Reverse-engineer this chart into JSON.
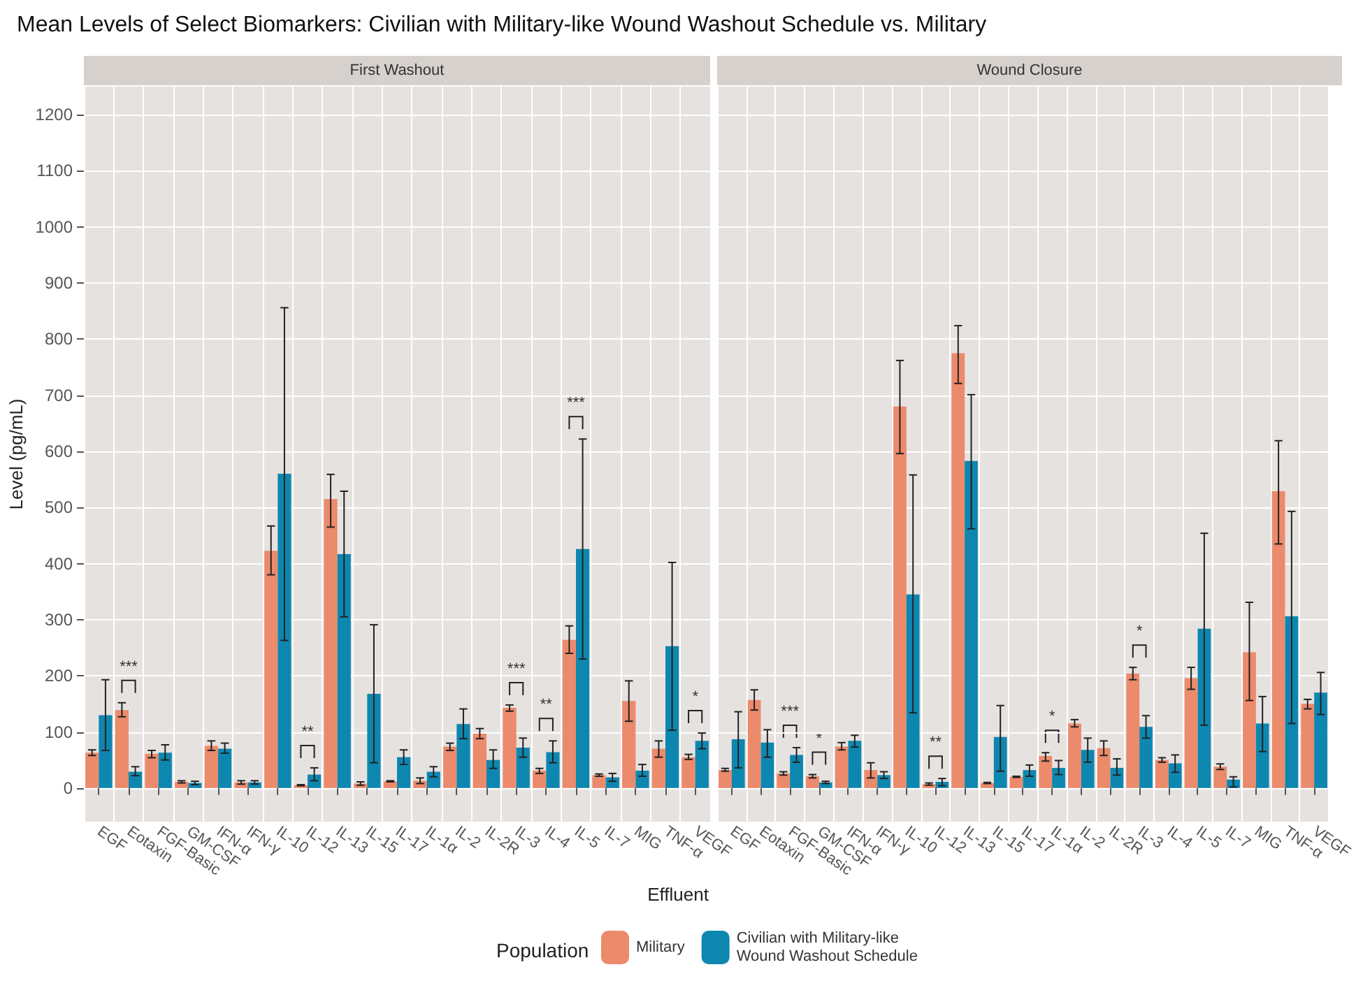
{
  "chart_data": [
    {
      "type": "bar",
      "title": "Mean Levels of Select Biomarkers: Civilian with Military-like Wound Washout Schedule vs. Military",
      "subtitle": "First Washout",
      "xlabel": "Effluent",
      "ylabel": "Level (pg/mL)",
      "legend_title": "Population",
      "legend": "bottom",
      "grid": true,
      "categories": [
        "EGF",
        "Eotaxin",
        "FGF-Basic",
        "GM-CSF",
        "IFN-α",
        "IFN-γ",
        "IL-10",
        "IL-12",
        "IL-13",
        "IL-15",
        "IL-17",
        "IL-1α",
        "IL-2",
        "IL-2R",
        "IL-3",
        "IL-4",
        "IL-5",
        "IL-7",
        "MIG",
        "TNF-α",
        "VEGF"
      ],
      "ylim": [
        -60,
        1250
      ],
      "yticks": [
        0,
        100,
        200,
        300,
        400,
        500,
        600,
        700,
        800,
        900,
        1000,
        1100,
        1200
      ],
      "series": [
        {
          "name": "Military",
          "color": "#ec8a6c",
          "values": [
            63,
            139,
            61,
            11,
            75,
            10,
            423,
            5,
            515,
            8,
            12,
            13,
            74,
            97,
            143,
            31,
            264,
            23,
            155,
            70,
            55
          ],
          "errors": [
            [
              58,
              68
            ],
            [
              127,
              152
            ],
            [
              54,
              67
            ],
            [
              9,
              13
            ],
            [
              67,
              84
            ],
            [
              7,
              13
            ],
            [
              380,
              467
            ],
            [
              4,
              6
            ],
            [
              465,
              559
            ],
            [
              5,
              11
            ],
            [
              11,
              13
            ],
            [
              8,
              18
            ],
            [
              67,
              80
            ],
            [
              88,
              106
            ],
            [
              137,
              148
            ],
            [
              26,
              35
            ],
            [
              240,
              289
            ],
            [
              21,
              25
            ],
            [
              119,
              191
            ],
            [
              55,
              84
            ],
            [
              51,
              60
            ]
          ]
        },
        {
          "name": "Civilian with Military-like Wound Washout Schedule",
          "color": "#0e87b0",
          "values": [
            130,
            29,
            63,
            9,
            70,
            10,
            560,
            24,
            417,
            168,
            55,
            29,
            114,
            50,
            72,
            64,
            426,
            19,
            31,
            253,
            84
          ],
          "errors": [
            [
              67,
              193
            ],
            [
              22,
              38
            ],
            [
              50,
              77
            ],
            [
              6,
              12
            ],
            [
              62,
              80
            ],
            [
              7,
              13
            ],
            [
              263,
              856
            ],
            [
              13,
              36
            ],
            [
              305,
              529
            ],
            [
              45,
              291
            ],
            [
              42,
              68
            ],
            [
              20,
              38
            ],
            [
              88,
              141
            ],
            [
              35,
              68
            ],
            [
              55,
              89
            ],
            [
              45,
              84
            ],
            [
              230,
              622
            ],
            [
              12,
              26
            ],
            [
              21,
              42
            ],
            [
              103,
              402
            ],
            [
              70,
              98
            ]
          ]
        }
      ],
      "annotations": [
        {
          "text": "***",
          "x": "Eotaxin",
          "y": 139
        },
        {
          "text": "**",
          "x": "IL-12",
          "y": 24
        },
        {
          "text": "***",
          "x": "IL-3",
          "y": 143
        },
        {
          "text": "**",
          "x": "IL-4",
          "y": 64
        },
        {
          "text": "***",
          "x": "IL-5",
          "y": 622
        },
        {
          "text": "*",
          "x": "VEGF",
          "y": 84
        }
      ]
    },
    {
      "type": "bar",
      "subtitle": "Wound Closure",
      "grid": true,
      "tick_labels": "x",
      "categories": [
        "EGF",
        "Eotaxin",
        "FGF-Basic",
        "GM-CSF",
        "IFN-α",
        "IFN-γ",
        "IL-10",
        "IL-12",
        "IL-13",
        "IL-15",
        "IL-17",
        "IL-1α",
        "IL-2",
        "IL-2R",
        "IL-3",
        "IL-4",
        "IL-5",
        "IL-7",
        "MIG",
        "TNF-α",
        "VEGF"
      ],
      "ylim": [
        -60,
        1250
      ],
      "yticks": [
        0,
        100,
        200,
        300,
        400,
        500,
        600,
        700,
        800,
        900,
        1000,
        1100,
        1200
      ],
      "series": [
        {
          "color": "#ec8a6c",
          "values": [
            32,
            157,
            26,
            21,
            74,
            32,
            680,
            7,
            775,
            9,
            20,
            57,
            115,
            71,
            204,
            50,
            196,
            38,
            242,
            529,
            150
          ],
          "errors": [
            [
              30,
              35
            ],
            [
              139,
              175
            ],
            [
              23,
              29
            ],
            [
              18,
              24
            ],
            [
              68,
              81
            ],
            [
              18,
              45
            ],
            [
              596,
              762
            ],
            [
              5,
              9
            ],
            [
              721,
              824
            ],
            [
              8,
              10
            ],
            [
              19,
              21
            ],
            [
              48,
              63
            ],
            [
              109,
              122
            ],
            [
              58,
              84
            ],
            [
              193,
              215
            ],
            [
              46,
              54
            ],
            [
              176,
              215
            ],
            [
              33,
              43
            ],
            [
              156,
              331
            ],
            [
              435,
              619
            ],
            [
              141,
              158
            ]
          ]
        },
        {
          "color": "#0e87b0",
          "values": [
            87,
            81,
            59,
            10,
            84,
            23,
            345,
            11,
            583,
            91,
            32,
            36,
            68,
            36,
            109,
            44,
            284,
            15,
            115,
            306,
            170
          ],
          "errors": [
            [
              36,
              136
            ],
            [
              55,
              104
            ],
            [
              46,
              72
            ],
            [
              8,
              12
            ],
            [
              73,
              94
            ],
            [
              17,
              29
            ],
            [
              134,
              558
            ],
            [
              4,
              17
            ],
            [
              462,
              701
            ],
            [
              30,
              147
            ],
            [
              21,
              41
            ],
            [
              24,
              49
            ],
            [
              46,
              89
            ],
            [
              23,
              52
            ],
            [
              89,
              129
            ],
            [
              28,
              59
            ],
            [
              112,
              454
            ],
            [
              2,
              20
            ],
            [
              65,
              163
            ],
            [
              115,
              493
            ],
            [
              131,
              206
            ]
          ]
        }
      ],
      "annotations": [
        {
          "text": "***",
          "x": "FGF-Basic",
          "y": 59
        },
        {
          "text": "*",
          "x": "GM-CSF",
          "y": 21
        },
        {
          "text": "**",
          "x": "IL-12",
          "y": 11
        },
        {
          "text": "*",
          "x": "IL-1α",
          "y": 57
        },
        {
          "text": "*",
          "x": "IL-3",
          "y": 204
        }
      ]
    }
  ]
}
